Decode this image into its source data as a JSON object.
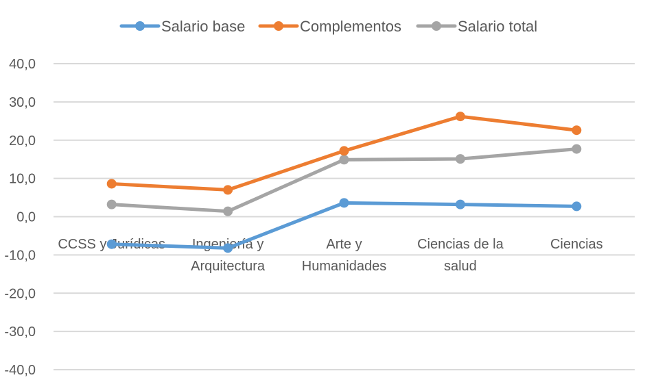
{
  "chart_data": {
    "type": "line",
    "title": "",
    "xlabel": "",
    "ylabel": "",
    "categories": [
      "CCSS y Jurídicas",
      "Ingeniería y Arquitectura",
      "Arte y Humanidades",
      "Ciencias de la salud",
      "Ciencias"
    ],
    "category_lines": [
      [
        "CCSS y Jurídicas"
      ],
      [
        "Ingeniería y",
        "Arquitectura"
      ],
      [
        "Arte y",
        "Humanidades"
      ],
      [
        "Ciencias de la",
        "salud"
      ],
      [
        "Ciencias"
      ]
    ],
    "series": [
      {
        "name": "Salario base",
        "color": "#5B9BD5",
        "values": [
          -7.2,
          -8.2,
          3.6,
          3.2,
          2.7
        ]
      },
      {
        "name": "Complementos",
        "color": "#ED7D31",
        "values": [
          8.6,
          7.0,
          17.2,
          26.2,
          22.6
        ]
      },
      {
        "name": "Salario total",
        "color": "#A5A5A5",
        "values": [
          3.2,
          1.4,
          14.9,
          15.1,
          17.7
        ]
      }
    ],
    "ylim": [
      -40,
      40
    ],
    "yticks": [
      40,
      30,
      20,
      10,
      0,
      -10,
      -20,
      -30,
      -40
    ],
    "ytick_labels": [
      "40,0",
      "30,0",
      "20,0",
      "10,0",
      "0,0",
      "-10,0",
      "-20,0",
      "-30,0",
      "-40,0"
    ],
    "grid": true,
    "legend_position": "top"
  }
}
